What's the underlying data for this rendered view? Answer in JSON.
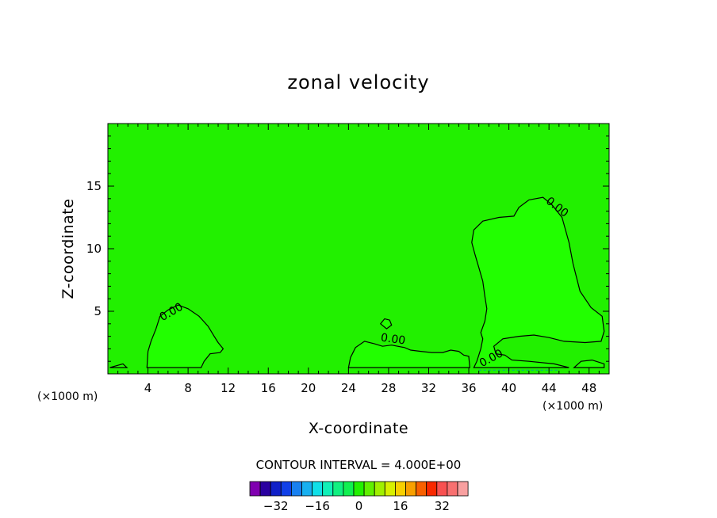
{
  "chart_data": {
    "type": "heatmap",
    "title": "zonal velocity",
    "xlabel": "X-coordinate",
    "ylabel": "Z-coordinate",
    "x_unit": "(×1000 m)",
    "xlim": [
      0,
      50
    ],
    "ylim": [
      0,
      20
    ],
    "x_ticks": [
      4,
      8,
      12,
      16,
      20,
      24,
      28,
      32,
      36,
      40,
      44,
      48
    ],
    "y_ticks": [
      5,
      10,
      15
    ],
    "background_value_color": "#22f000",
    "positive_region_color": "#22ff00",
    "contour_line_color": "#000000",
    "contour_interval_text": "CONTOUR INTERVAL = 4.000E+00",
    "contour_label": "0.00",
    "regions": [
      {
        "name": "left blob",
        "x": [
          3.9,
          11.7
        ],
        "z": [
          0.5,
          5.6
        ]
      },
      {
        "name": "middle bump",
        "x": [
          24,
          36
        ],
        "z": [
          0.5,
          2.6
        ]
      },
      {
        "name": "right plume",
        "x": [
          36.5,
          49.6
        ],
        "z": [
          0.5,
          14.2
        ]
      },
      {
        "name": "small loop",
        "x": [
          27.2,
          28.3
        ],
        "z": [
          3.7,
          4.3
        ]
      }
    ],
    "colorbar": {
      "colors": [
        "#8000b0",
        "#2a00a0",
        "#1020c8",
        "#1040e8",
        "#1880f0",
        "#18b0f0",
        "#10e0e8",
        "#10f0b8",
        "#10f080",
        "#10f050",
        "#22f000",
        "#60f000",
        "#a0f000",
        "#d8f000",
        "#f8d000",
        "#f8a000",
        "#f86000",
        "#f82800",
        "#f85050",
        "#f87070",
        "#f8a0a0"
      ],
      "tick_labels": [
        "−32",
        "−16",
        "0",
        "16",
        "32"
      ],
      "tick_values": [
        -32,
        -16,
        0,
        16,
        32
      ]
    }
  }
}
